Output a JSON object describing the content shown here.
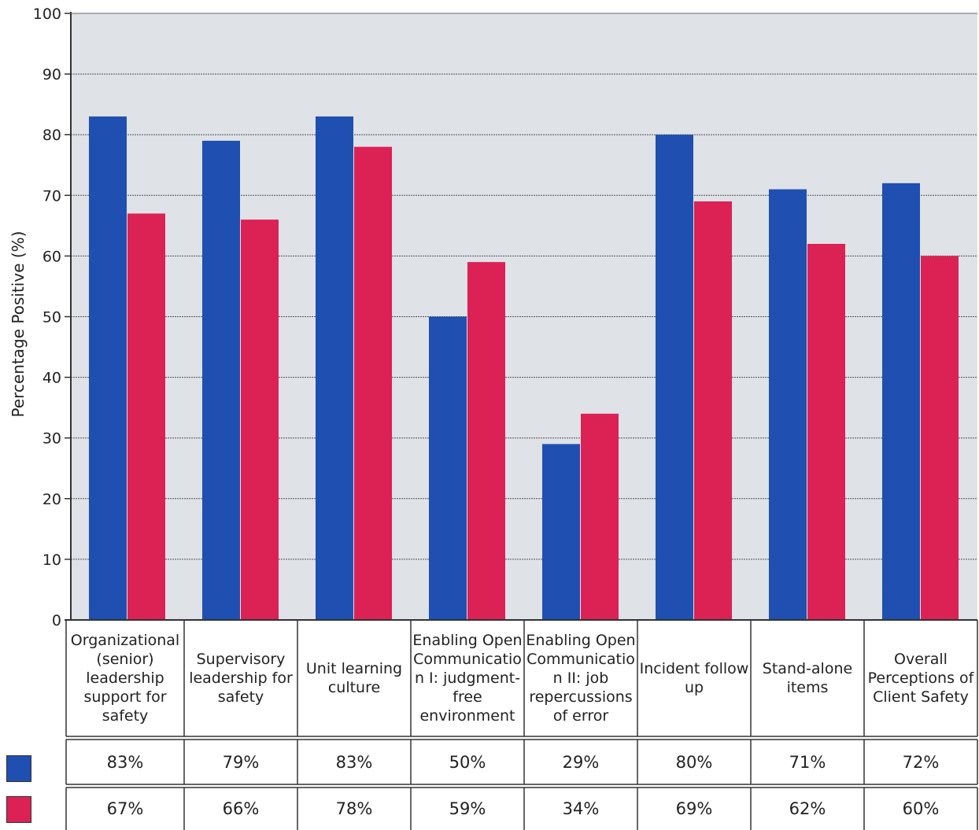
{
  "chart_data": {
    "type": "bar",
    "ylabel": "Percentage Positive (%)",
    "ylim": [
      0,
      100
    ],
    "yticks": [
      0,
      10,
      20,
      30,
      40,
      50,
      60,
      70,
      80,
      90,
      100
    ],
    "grid": true,
    "categories": [
      "Organizational (senior) leadership support for safety",
      "Supervisory leadership for safety",
      "Unit learning culture",
      "Enabling Open Communicatio n I: judgment-free environment",
      "Enabling Open Communicatio n II: job repercussions of error",
      "Incident follow up",
      "Stand-alone items",
      "Overall Perceptions of Client Safety"
    ],
    "series": [
      {
        "values": [
          83,
          79,
          83,
          50,
          29,
          80,
          71,
          72
        ],
        "labels": [
          "83%",
          "79%",
          "83%",
          "50%",
          "29%",
          "80%",
          "71%",
          "72%"
        ]
      },
      {
        "values": [
          67,
          66,
          78,
          59,
          34,
          69,
          62,
          60
        ],
        "labels": [
          "67%",
          "66%",
          "78%",
          "59%",
          "34%",
          "69%",
          "62%",
          "60%"
        ]
      }
    ],
    "colors": {
      "series1": "#1f4fb0",
      "series2": "#dc2155",
      "plot_background": "#dfe2e7"
    }
  }
}
